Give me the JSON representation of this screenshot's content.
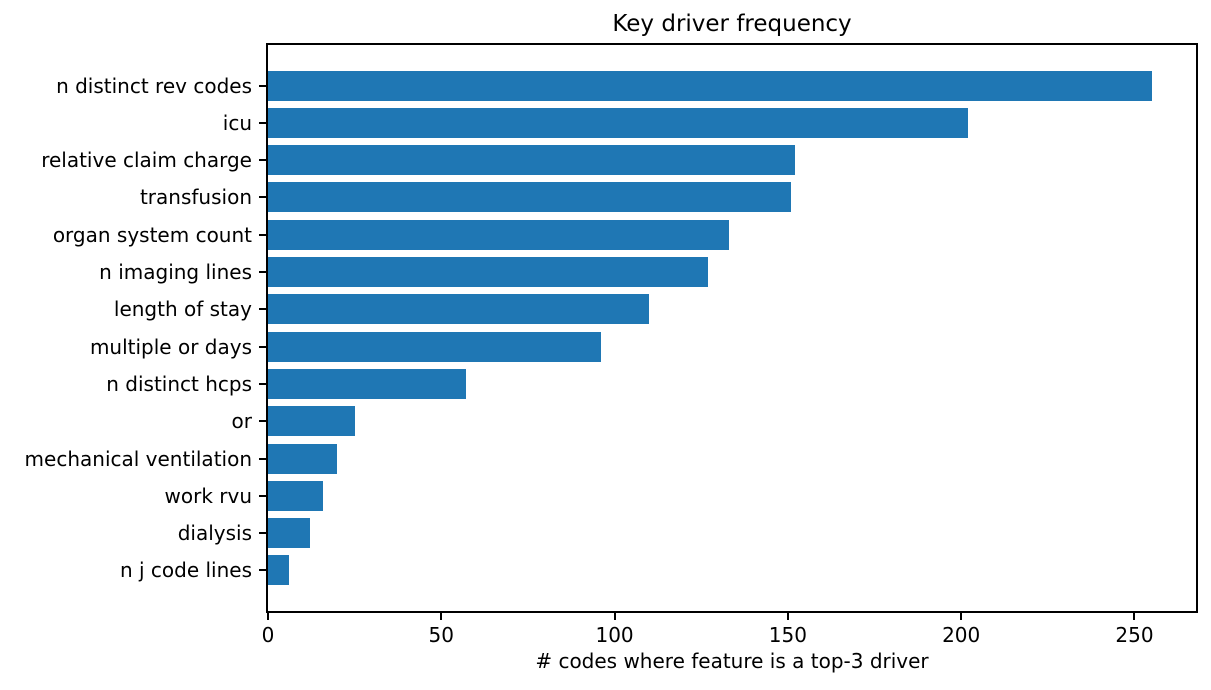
{
  "chart_data": {
    "type": "bar",
    "orientation": "horizontal",
    "title": "Key driver frequency",
    "xlabel": "# codes where feature is a top-3 driver",
    "ylabel": "",
    "categories": [
      "n distinct rev codes",
      "icu",
      "relative claim charge",
      "transfusion",
      "organ system count",
      "n imaging lines",
      "length of stay",
      "multiple or days",
      "n distinct hcps",
      "or",
      "mechanical ventilation",
      "work rvu",
      "dialysis",
      "n j code lines"
    ],
    "values": [
      255,
      202,
      152,
      151,
      133,
      127,
      110,
      96,
      57,
      25,
      20,
      16,
      12,
      6
    ],
    "xticks": [
      0,
      50,
      100,
      150,
      200,
      250
    ],
    "xlim": [
      0,
      267.75
    ],
    "grid": false,
    "legend_position": "none",
    "bar_color": "#1f77b4",
    "text_color": "#000000",
    "spine_color": "#000000"
  }
}
